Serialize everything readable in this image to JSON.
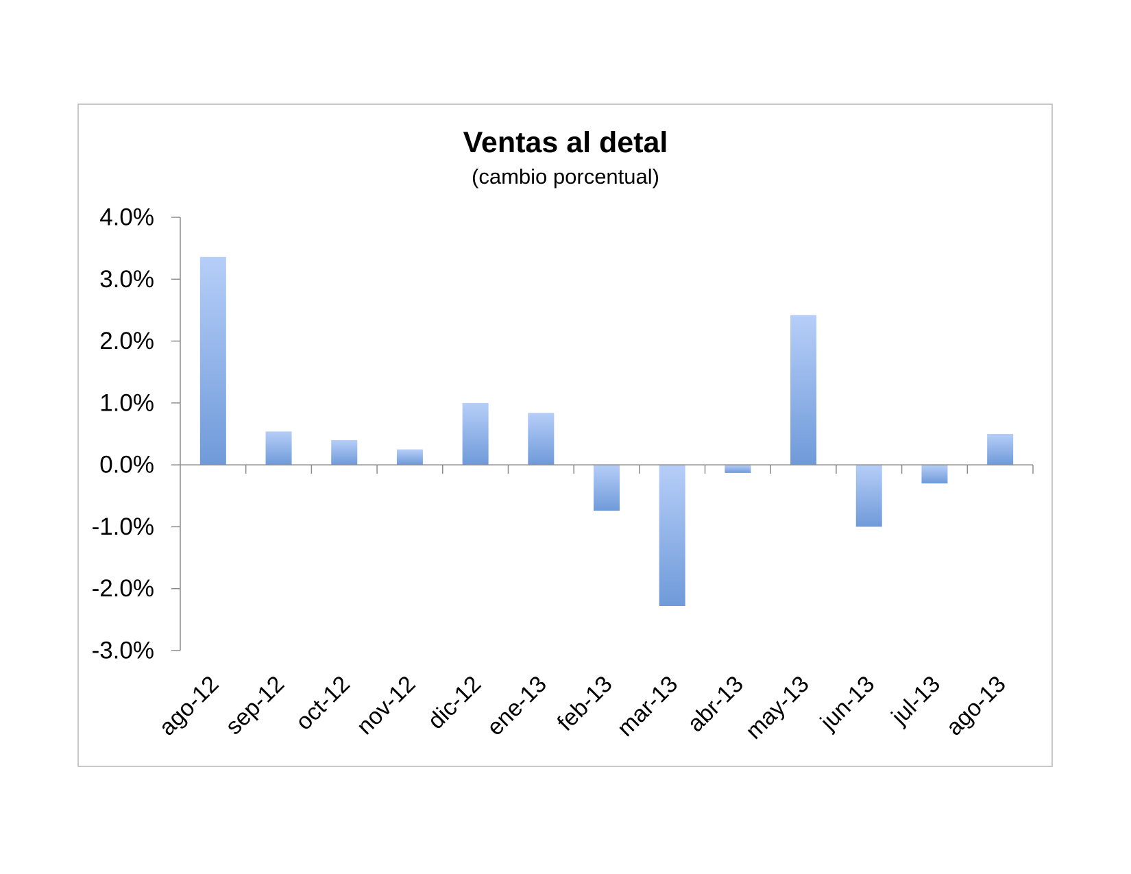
{
  "chart_data": {
    "type": "bar",
    "title": "Ventas al detal",
    "subtitle": "(cambio porcentual)",
    "categories": [
      "ago-12",
      "sep-12",
      "oct-12",
      "nov-12",
      "dic-12",
      "ene-13",
      "feb-13",
      "mar-13",
      "abr-13",
      "may-13",
      "jun-13",
      "jul-13",
      "ago-13"
    ],
    "values": [
      3.36,
      0.54,
      0.4,
      0.25,
      1.0,
      0.84,
      -0.74,
      -2.28,
      -0.13,
      2.42,
      -1.0,
      -0.3,
      0.5
    ],
    "ylim": [
      -3,
      4
    ],
    "ytick_values": [
      4,
      3,
      2,
      1,
      0,
      -1,
      -2,
      -3
    ],
    "ytick_labels": [
      "4.0%",
      "3.0%",
      "2.0%",
      "1.0%",
      "0.0%",
      "-1.0%",
      "-2.0%",
      "-3.0%"
    ],
    "xlabel": "",
    "ylabel": "",
    "grid": false,
    "legend": "none",
    "colors": {
      "bar_light": "#b6cef8",
      "bar_dark": "#6f9ad9",
      "axis": "#8c8c8c",
      "frame": "#b5b5b5"
    }
  }
}
